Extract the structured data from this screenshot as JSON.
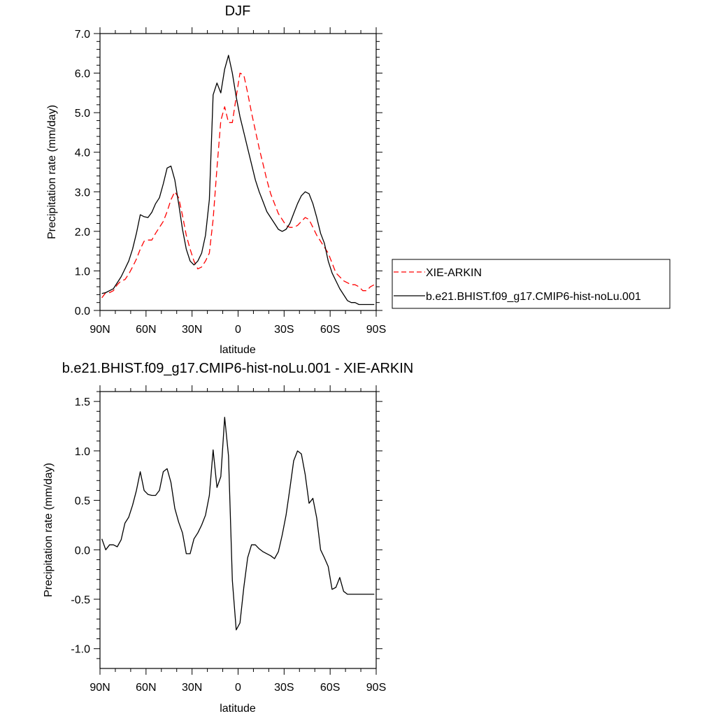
{
  "chart_data": [
    {
      "type": "line",
      "title": "DJF",
      "xlabel": "latitude",
      "ylabel": "Precipitation rate (mm/day)",
      "xlim": [
        90,
        -90
      ],
      "ylim": [
        0,
        7
      ],
      "xticks": [
        90,
        60,
        30,
        0,
        -30,
        -60,
        -90
      ],
      "xtick_labels": [
        "90N",
        "60N",
        "30N",
        "0",
        "30S",
        "60S",
        "90S"
      ],
      "yticks": [
        0,
        1,
        2,
        3,
        4,
        5,
        6,
        7
      ],
      "ytick_labels": [
        "0.0",
        "1.0",
        "2.0",
        "3.0",
        "4.0",
        "5.0",
        "6.0",
        "7.0"
      ],
      "grid": false,
      "legend": "right",
      "series": [
        {
          "name": "XIE-ARKIN",
          "color": "#ff0000",
          "dash": "dashed",
          "x": [
            88.75,
            86.25,
            83.75,
            81.25,
            78.75,
            76.25,
            73.75,
            71.25,
            68.75,
            66.25,
            63.75,
            61.25,
            58.75,
            56.25,
            53.75,
            51.25,
            48.75,
            46.25,
            43.75,
            41.25,
            38.75,
            36.25,
            33.75,
            31.25,
            28.75,
            26.25,
            23.75,
            21.25,
            18.75,
            16.25,
            13.75,
            11.25,
            8.75,
            6.25,
            3.75,
            1.25,
            -1.25,
            -3.75,
            -6.25,
            -8.75,
            -11.25,
            -13.75,
            -16.25,
            -18.75,
            -21.25,
            -23.75,
            -26.25,
            -28.75,
            -31.25,
            -33.75,
            -36.25,
            -38.75,
            -41.25,
            -43.75,
            -46.25,
            -48.75,
            -51.25,
            -53.75,
            -56.25,
            -58.75,
            -61.25,
            -63.75,
            -66.25,
            -68.75,
            -71.25,
            -73.75,
            -76.25,
            -78.75,
            -81.25,
            -83.75,
            -86.25,
            -88.75
          ],
          "values": [
            0.32,
            0.45,
            0.45,
            0.5,
            0.65,
            0.75,
            0.78,
            0.92,
            1.1,
            1.3,
            1.55,
            1.75,
            1.78,
            1.78,
            1.95,
            2.1,
            2.25,
            2.5,
            2.8,
            3.0,
            2.85,
            2.4,
            1.9,
            1.55,
            1.25,
            1.05,
            1.1,
            1.25,
            1.45,
            2.3,
            3.6,
            4.8,
            5.15,
            4.75,
            4.75,
            5.4,
            6.0,
            5.95,
            5.5,
            5.0,
            4.55,
            4.1,
            3.7,
            3.3,
            2.95,
            2.7,
            2.45,
            2.3,
            2.15,
            2.1,
            2.1,
            2.15,
            2.25,
            2.35,
            2.3,
            2.1,
            1.9,
            1.75,
            1.6,
            1.45,
            1.2,
            0.95,
            0.85,
            0.75,
            0.7,
            0.65,
            0.65,
            0.6,
            0.5,
            0.5,
            0.6,
            0.65
          ]
        },
        {
          "name": "b.e21.BHIST.f09_g17.CMIP6-hist-noLu.001",
          "color": "#000000",
          "dash": "solid",
          "x": [
            88.75,
            86.25,
            83.75,
            81.25,
            78.75,
            76.25,
            73.75,
            71.25,
            68.75,
            66.25,
            63.75,
            61.25,
            58.75,
            56.25,
            53.75,
            51.25,
            48.75,
            46.25,
            43.75,
            41.25,
            38.75,
            36.25,
            33.75,
            31.25,
            28.75,
            26.25,
            23.75,
            21.25,
            18.75,
            16.25,
            13.75,
            11.25,
            8.75,
            6.25,
            3.75,
            1.25,
            -1.25,
            -3.75,
            -6.25,
            -8.75,
            -11.25,
            -13.75,
            -16.25,
            -18.75,
            -21.25,
            -23.75,
            -26.25,
            -28.75,
            -31.25,
            -33.75,
            -36.25,
            -38.75,
            -41.25,
            -43.75,
            -46.25,
            -48.75,
            -51.25,
            -53.75,
            -56.25,
            -58.75,
            -61.25,
            -63.75,
            -66.25,
            -68.75,
            -71.25,
            -73.75,
            -76.25,
            -78.75,
            -81.25,
            -83.75,
            -86.25,
            -88.75
          ],
          "values": [
            0.43,
            0.45,
            0.5,
            0.55,
            0.7,
            0.85,
            1.05,
            1.25,
            1.55,
            1.95,
            2.42,
            2.37,
            2.35,
            2.48,
            2.7,
            2.85,
            3.2,
            3.6,
            3.65,
            3.3,
            2.7,
            2.05,
            1.55,
            1.25,
            1.15,
            1.25,
            1.45,
            1.9,
            2.8,
            5.45,
            5.75,
            5.5,
            6.1,
            6.45,
            6.0,
            5.4,
            4.9,
            4.5,
            4.1,
            3.7,
            3.3,
            3.0,
            2.75,
            2.5,
            2.35,
            2.2,
            2.05,
            2.0,
            2.05,
            2.2,
            2.45,
            2.7,
            2.9,
            3.0,
            2.95,
            2.7,
            2.35,
            1.95,
            1.7,
            1.25,
            0.95,
            0.75,
            0.55,
            0.4,
            0.25,
            0.2,
            0.2,
            0.15,
            0.15,
            0.15,
            0.15,
            0.15
          ]
        }
      ]
    },
    {
      "type": "line",
      "title": "b.e21.BHIST.f09_g17.CMIP6-hist-noLu.001 - XIE-ARKIN",
      "xlabel": "latitude",
      "ylabel": "Precipitation rate (mm/day)",
      "xlim": [
        90,
        -90
      ],
      "ylim": [
        -1.2,
        1.6
      ],
      "xticks": [
        90,
        60,
        30,
        0,
        -30,
        -60,
        -90
      ],
      "xtick_labels": [
        "90N",
        "60N",
        "30N",
        "0",
        "30S",
        "60S",
        "90S"
      ],
      "yticks": [
        -1.0,
        -0.5,
        0.0,
        0.5,
        1.0,
        1.5
      ],
      "ytick_labels": [
        "-1.0",
        "-0.5",
        "0.0",
        "0.5",
        "1.0",
        "1.5"
      ],
      "grid": false,
      "series": [
        {
          "color": "#000000",
          "dash": "solid",
          "x": [
            88.75,
            86.25,
            83.75,
            81.25,
            78.75,
            76.25,
            73.75,
            71.25,
            68.75,
            66.25,
            63.75,
            61.25,
            58.75,
            56.25,
            53.75,
            51.25,
            48.75,
            46.25,
            43.75,
            41.25,
            38.75,
            36.25,
            33.75,
            31.25,
            28.75,
            26.25,
            23.75,
            21.25,
            18.75,
            16.25,
            13.75,
            11.25,
            8.75,
            6.25,
            3.75,
            1.25,
            -1.25,
            -3.75,
            -6.25,
            -8.75,
            -11.25,
            -13.75,
            -16.25,
            -18.75,
            -21.25,
            -23.75,
            -26.25,
            -28.75,
            -31.25,
            -33.75,
            -36.25,
            -38.75,
            -41.25,
            -43.75,
            -46.25,
            -48.75,
            -51.25,
            -53.75,
            -56.25,
            -58.75,
            -61.25,
            -63.75,
            -66.25,
            -68.75,
            -71.25,
            -73.75,
            -76.25,
            -78.75,
            -81.25,
            -83.75,
            -86.25,
            -88.75
          ],
          "values": [
            0.11,
            0.0,
            0.05,
            0.05,
            0.03,
            0.1,
            0.27,
            0.33,
            0.45,
            0.6,
            0.79,
            0.6,
            0.56,
            0.55,
            0.55,
            0.6,
            0.79,
            0.82,
            0.68,
            0.42,
            0.28,
            0.17,
            -0.04,
            -0.04,
            0.11,
            0.17,
            0.25,
            0.35,
            0.55,
            1.01,
            0.63,
            0.74,
            1.34,
            0.95,
            -0.31,
            -0.81,
            -0.74,
            -0.38,
            -0.08,
            0.05,
            0.05,
            0.01,
            -0.02,
            -0.04,
            -0.06,
            -0.09,
            -0.02,
            0.15,
            0.35,
            0.62,
            0.9,
            1.0,
            0.97,
            0.76,
            0.47,
            0.52,
            0.32,
            0.0,
            -0.08,
            -0.17,
            -0.4,
            -0.38,
            -0.28,
            -0.42,
            -0.45,
            -0.45,
            -0.45,
            -0.45,
            -0.45,
            -0.45,
            -0.45,
            -0.45
          ]
        }
      ]
    }
  ]
}
